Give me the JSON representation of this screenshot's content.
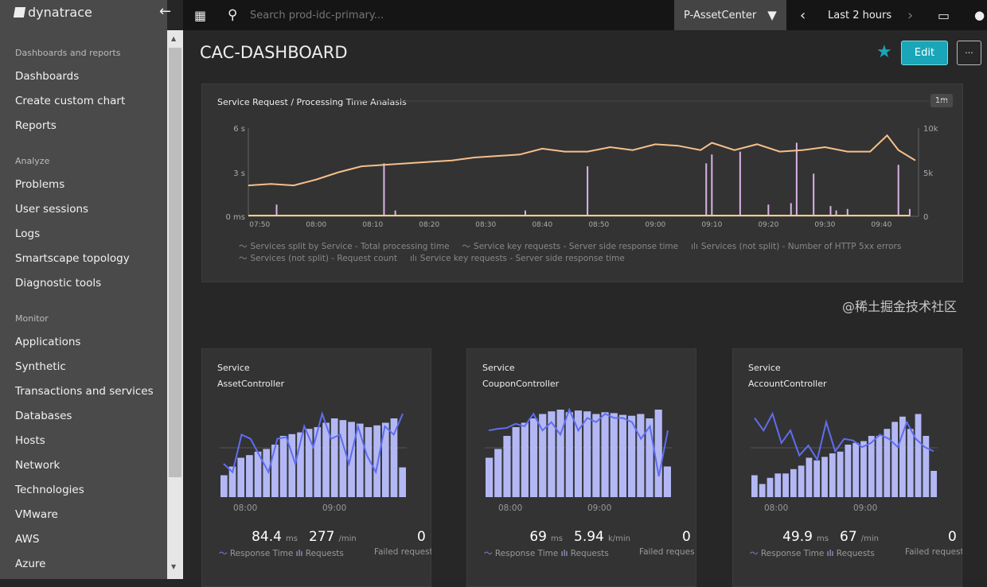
{
  "app": {
    "brand": "dynatrace",
    "search_placeholder": "Search prod-idc-primary...",
    "filter": "P-AssetCenter",
    "timeframe": "Last 2 hours"
  },
  "sidebar": {
    "sections": [
      {
        "title": "Dashboards and reports",
        "items": [
          "Dashboards",
          "Create custom chart",
          "Reports"
        ]
      },
      {
        "title": "Analyze",
        "items": [
          "Problems",
          "User sessions",
          "Logs",
          "Smartscape topology",
          "Diagnostic tools"
        ]
      },
      {
        "title": "Monitor",
        "items": [
          "Applications",
          "Synthetic",
          "Transactions and services",
          "Databases",
          "Hosts",
          "Network",
          "Technologies",
          "VMware",
          "AWS",
          "Azure"
        ]
      }
    ]
  },
  "page": {
    "title": "CAC-DASHBOARD",
    "edit_label": "Edit",
    "more_label": "···"
  },
  "colors": {
    "accent": "#1aa5b9",
    "line": "#f5c08a",
    "spike": "#d9b3e6",
    "bar": "#b3b8f5",
    "tile_line": "#5f6df0"
  },
  "chart_data": [
    {
      "type": "line",
      "title": "Service Request / Processing Time Analasis",
      "resolution": "1m",
      "yticks_left": [
        "6 s",
        "3 s",
        "0 ms"
      ],
      "yticks_right": [
        "10k",
        "5k",
        "0"
      ],
      "ylim_left_s": [
        0,
        6
      ],
      "ylim_right": [
        0,
        10000
      ],
      "xticks": [
        "07:50",
        "08:00",
        "08:10",
        "08:20",
        "08:30",
        "08:40",
        "08:50",
        "09:00",
        "09:10",
        "09:20",
        "09:30",
        "09:40"
      ],
      "legend": [
        "Services split by Service - Total processing time",
        "Service key requests - Server side response time",
        "Services (not split) - Number of HTTP 5xx errors",
        "Services (not split) - Request count",
        "Service key requests - Server side response time"
      ],
      "series": [
        {
          "name": "Services split by Service - Total processing time",
          "x": [
            "07:48",
            "07:52",
            "07:56",
            "08:00",
            "08:04",
            "08:08",
            "08:12",
            "08:16",
            "08:20",
            "08:24",
            "08:28",
            "08:32",
            "08:36",
            "08:40",
            "08:44",
            "08:48",
            "08:52",
            "08:56",
            "09:00",
            "09:04",
            "09:08",
            "09:10",
            "09:14",
            "09:18",
            "09:22",
            "09:26",
            "09:30",
            "09:34",
            "09:38",
            "09:41",
            "09:43",
            "09:46"
          ],
          "y": [
            2.1,
            2.2,
            2.1,
            2.5,
            3.0,
            3.4,
            3.5,
            3.6,
            3.7,
            3.8,
            4.0,
            4.1,
            4.2,
            4.6,
            4.4,
            4.4,
            4.7,
            4.5,
            4.9,
            4.8,
            4.5,
            5.0,
            4.5,
            4.9,
            4.4,
            4.5,
            4.7,
            4.4,
            4.4,
            5.5,
            4.5,
            3.8
          ]
        },
        {
          "name": "Service key requests - Server side response time",
          "x": [
            "07:53",
            "08:12",
            "08:14",
            "08:37",
            "08:48",
            "09:09",
            "09:10",
            "09:15",
            "09:20",
            "09:24",
            "09:25",
            "09:28",
            "09:31",
            "09:32",
            "09:34",
            "09:43",
            "09:45"
          ],
          "y": [
            0.8,
            3.6,
            0.4,
            0.4,
            3.4,
            3.6,
            4.2,
            4.4,
            0.8,
            0.9,
            5.0,
            2.9,
            0.7,
            0.4,
            0.5,
            3.5,
            0.5
          ]
        }
      ]
    }
  ],
  "tiles": [
    {
      "type": "Service",
      "name": "AssetController",
      "xticks": [
        "08:00",
        "09:00"
      ],
      "rt": "84.4",
      "rt_unit": "ms",
      "req": "277",
      "req_unit": "/min",
      "failed": "0",
      "rt_label": "Response Time",
      "req_label": "Requests",
      "failed_label": "Failed request",
      "bars": [
        25,
        35,
        45,
        48,
        52,
        55,
        60,
        70,
        72,
        74,
        78,
        80,
        85,
        90,
        88,
        86,
        84,
        80,
        82,
        85,
        90,
        34
      ],
      "line": [
        40,
        30,
        75,
        70,
        50,
        30,
        70,
        72,
        40,
        85,
        60,
        100,
        70,
        75,
        40,
        85,
        50,
        30,
        85,
        75,
        100
      ]
    },
    {
      "type": "Service",
      "name": "CouponController",
      "xticks": [
        "08:00",
        "09:00"
      ],
      "rt": "69",
      "rt_unit": "ms",
      "req": "5.94",
      "req_unit": "k/min",
      "failed": "0",
      "rt_label": "Response Time",
      "req_label": "Requests",
      "failed_label": "Failed reques",
      "bars": [
        45,
        55,
        70,
        80,
        85,
        90,
        95,
        98,
        100,
        97,
        99,
        98,
        95,
        97,
        96,
        94,
        93,
        95,
        90,
        100,
        35
      ],
      "line": [
        80,
        82,
        83,
        88,
        85,
        100,
        80,
        90,
        75,
        105,
        80,
        95,
        90,
        100,
        95,
        95,
        90,
        70,
        85,
        25,
        80
      ]
    },
    {
      "type": "Service",
      "name": "AccountController",
      "xticks": [
        "08:00",
        "09:00"
      ],
      "rt": "49.9",
      "rt_unit": "ms",
      "req": "67",
      "req_unit": "/min",
      "failed": "0",
      "rt_label": "Response Time",
      "req_label": "Requests",
      "failed_label": "Failed requests",
      "bars": [
        25,
        15,
        22,
        27,
        27,
        32,
        36,
        45,
        42,
        46,
        50,
        52,
        60,
        62,
        64,
        70,
        70,
        78,
        86,
        92,
        78,
        95,
        70,
        30
      ],
      "line": [
        95,
        80,
        100,
        65,
        80,
        50,
        62,
        45,
        90,
        55,
        70,
        68,
        60,
        65,
        75,
        70,
        60,
        90,
        70,
        60,
        55
      ]
    }
  ],
  "watermark": "@稀土掘金技术社区"
}
